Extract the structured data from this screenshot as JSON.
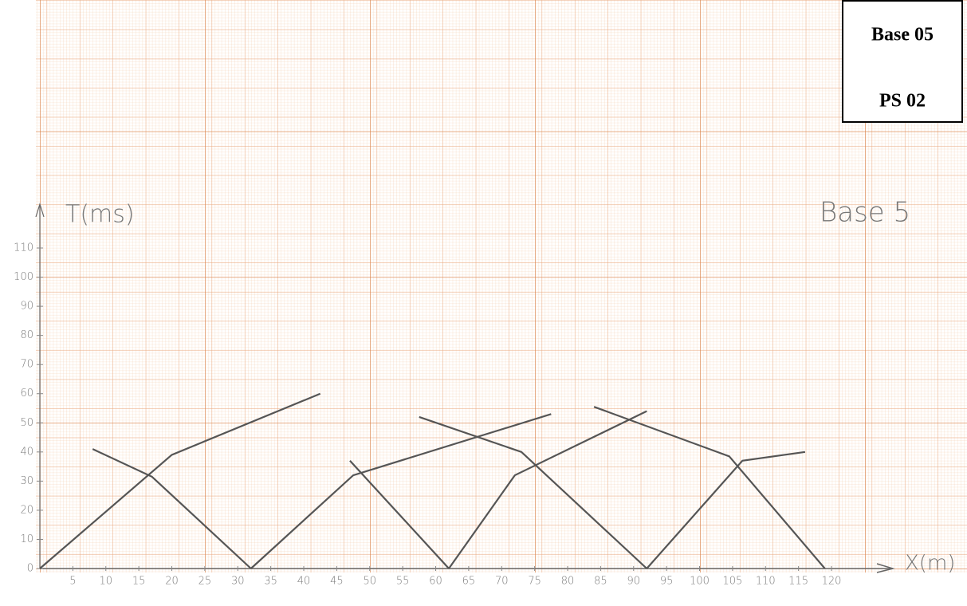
{
  "chart_data": {
    "type": "line",
    "y_label": "T(ms)",
    "x_label": "X(m)",
    "annotation": "Base 5",
    "box_lines": [
      "Base 05",
      "PS 02"
    ],
    "xlim": [
      0,
      120
    ],
    "ylim": [
      0,
      110
    ],
    "xticks": [
      5,
      10,
      15,
      20,
      25,
      30,
      35,
      40,
      45,
      50,
      55,
      60,
      65,
      70,
      75,
      80,
      85,
      90,
      95,
      100,
      105,
      110,
      115,
      120
    ],
    "yticks": [
      0,
      10,
      20,
      30,
      40,
      50,
      60,
      70,
      80,
      90,
      100,
      110
    ],
    "series": [
      {
        "color": "#555555",
        "x": [
          0,
          20,
          42.5
        ],
        "values": [
          0,
          39,
          60
        ]
      },
      {
        "color": "#555555",
        "x": [
          8,
          17,
          32
        ],
        "values": [
          41,
          31.5,
          0
        ]
      },
      {
        "color": "#555555",
        "x": [
          32,
          47.5,
          77.5
        ],
        "values": [
          0,
          32,
          53
        ]
      },
      {
        "color": "#555555",
        "x": [
          47,
          62
        ],
        "values": [
          37,
          0
        ]
      },
      {
        "color": "#555555",
        "x": [
          62,
          72,
          92
        ],
        "values": [
          0,
          32,
          54
        ]
      },
      {
        "color": "#555555",
        "x": [
          57.5,
          73,
          92
        ],
        "values": [
          52,
          40,
          0
        ]
      },
      {
        "color": "#555555",
        "x": [
          92,
          106.5,
          116
        ],
        "values": [
          0,
          37,
          40
        ]
      },
      {
        "color": "#555555",
        "x": [
          84,
          104.5,
          119
        ],
        "values": [
          55.5,
          38.5,
          0
        ]
      }
    ]
  }
}
